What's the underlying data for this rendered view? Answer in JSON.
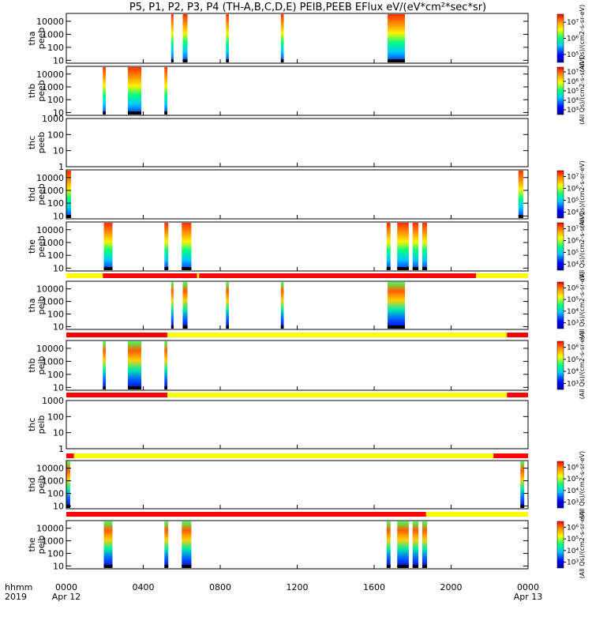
{
  "title": "P5, P1, P2, P3, P4 (TH-A,B,C,D,E) PEIB,PEEB EFlux eV/(eV*cm²*sec*sr)",
  "chart_data": {
    "type": "heatmap",
    "title": "P5, P1, P2, P3, P4 (TH-A,B,C,D,E) PEIB,PEEB EFlux eV/(eV*cm²*sec*sr)",
    "x_label_rows": [
      "hhmm",
      "2019"
    ],
    "x_ticks": [
      "0000",
      "0400",
      "0800",
      "1200",
      "1600",
      "2000",
      "0000"
    ],
    "x_tick_dates": [
      "Apr 12",
      "Apr 13"
    ],
    "x_range_hours": [
      0,
      24
    ],
    "y_scale": "log",
    "panels": [
      {
        "name": "tha peeb",
        "probe": "tha",
        "instrument": "peeb",
        "ylabel_top": "tha",
        "ylabel_bottom": "peeb",
        "yticks": [
          "10",
          "100",
          "1000",
          "10000"
        ],
        "ylim": [
          6,
          40000
        ],
        "colorbar": {
          "ticks": [
            "10⁵",
            "10⁶",
            "10⁷"
          ],
          "label": "(All Qs)/(cm2-s-sr-eV)"
        },
        "segments_hours": [
          [
            5.45,
            5.55
          ],
          [
            6.05,
            6.3
          ],
          [
            8.3,
            8.45
          ],
          [
            11.15,
            11.3
          ],
          [
            16.7,
            17.6
          ]
        ],
        "mode_bar": null
      },
      {
        "name": "thb peeb",
        "probe": "thb",
        "instrument": "peeb",
        "ylabel_top": "thb",
        "ylabel_bottom": "peeb",
        "yticks": [
          "10",
          "100",
          "1000",
          "10000"
        ],
        "ylim": [
          6,
          40000
        ],
        "colorbar": {
          "ticks": [
            "10³",
            "10⁴",
            "10⁵",
            "10⁶",
            "10⁷"
          ],
          "label": "(All Qs)/(cm2-s-sr-eV)"
        },
        "segments_hours": [
          [
            1.9,
            2.05
          ],
          [
            3.2,
            3.9
          ],
          [
            5.1,
            5.25
          ]
        ],
        "mode_bar": null
      },
      {
        "name": "thc peeb",
        "probe": "thc",
        "instrument": "peeb",
        "ylabel_top": "thc",
        "ylabel_bottom": "peeb",
        "yticks": [
          "1",
          "10",
          "100",
          "1000"
        ],
        "ylim": [
          1,
          1000
        ],
        "colorbar": null,
        "segments_hours": [],
        "mode_bar": null
      },
      {
        "name": "thd peeb",
        "probe": "thd",
        "instrument": "peeb",
        "ylabel_top": "thd",
        "ylabel_bottom": "peeb",
        "yticks": [
          "10",
          "100",
          "1000",
          "10000"
        ],
        "ylim": [
          6,
          40000
        ],
        "colorbar": {
          "ticks": [
            "10⁴",
            "10⁵",
            "10⁶",
            "10⁷"
          ],
          "label": "(All Qs)/(cm2-s-sr-eV)"
        },
        "segments_hours": [
          [
            0.0,
            0.25
          ],
          [
            23.5,
            23.75
          ]
        ],
        "mode_bar": null
      },
      {
        "name": "the peeb",
        "probe": "the",
        "instrument": "peeb",
        "ylabel_top": "the",
        "ylabel_bottom": "peeb",
        "yticks": [
          "10",
          "100",
          "1000",
          "10000"
        ],
        "ylim": [
          6,
          40000
        ],
        "colorbar": {
          "ticks": [
            "10⁴",
            "10⁵",
            "10⁶",
            "10⁷"
          ],
          "label": "(All Qs)/(cm2-s-sr-eV)"
        },
        "segments_hours": [
          [
            1.95,
            2.4
          ],
          [
            5.1,
            5.3
          ],
          [
            6.0,
            6.5
          ],
          [
            16.65,
            16.85
          ],
          [
            17.2,
            17.8
          ],
          [
            18.0,
            18.3
          ],
          [
            18.5,
            18.75
          ]
        ],
        "mode_bar": null
      },
      {
        "name": "tha peib",
        "probe": "tha",
        "instrument": "peib",
        "ylabel_top": "tha",
        "ylabel_bottom": "peib",
        "yticks": [
          "10",
          "100",
          "1000",
          "10000"
        ],
        "ylim": [
          6,
          40000
        ],
        "colorbar": {
          "ticks": [
            "10³",
            "10⁴",
            "10⁵",
            "10⁶"
          ],
          "label": "(All Qs)/(cm2-s-sr-eV)"
        },
        "segments_hours": [
          [
            5.45,
            5.55
          ],
          [
            6.05,
            6.3
          ],
          [
            8.3,
            8.45
          ],
          [
            11.15,
            11.3
          ],
          [
            16.7,
            17.6
          ]
        ],
        "mode_bar": [
          [
            "#ffff00",
            0,
            1.9
          ],
          [
            "#ff0000",
            1.9,
            6.8
          ],
          [
            "#ffff00",
            6.8,
            6.9
          ],
          [
            "#ff0000",
            6.9,
            21.3
          ],
          [
            "#ffff00",
            21.3,
            24
          ]
        ]
      },
      {
        "name": "thb peib",
        "probe": "thb",
        "instrument": "peib",
        "ylabel_top": "thb",
        "ylabel_bottom": "peib",
        "yticks": [
          "10",
          "100",
          "1000",
          "10000"
        ],
        "ylim": [
          6,
          40000
        ],
        "colorbar": {
          "ticks": [
            "10³",
            "10⁴",
            "10⁵",
            "10⁶"
          ],
          "label": "(All Qs)/(cm2-s-sr-eV)"
        },
        "segments_hours": [
          [
            1.9,
            2.05
          ],
          [
            3.2,
            3.9
          ],
          [
            5.1,
            5.25
          ]
        ],
        "mode_bar": [
          [
            "#ff0000",
            0,
            5.25
          ],
          [
            "#ffff00",
            5.25,
            22.9
          ],
          [
            "#ff0000",
            22.9,
            24
          ]
        ]
      },
      {
        "name": "thc peib",
        "probe": "thc",
        "instrument": "peib",
        "ylabel_top": "thc",
        "ylabel_bottom": "peib",
        "yticks": [
          "1",
          "10",
          "100",
          "1000"
        ],
        "ylim": [
          1,
          1000
        ],
        "colorbar": null,
        "segments_hours": [],
        "mode_bar": [
          [
            "#ff0000",
            0,
            5.25
          ],
          [
            "#ffff00",
            5.25,
            22.9
          ],
          [
            "#ff0000",
            22.9,
            24
          ]
        ]
      },
      {
        "name": "thd peib",
        "probe": "thd",
        "instrument": "peib",
        "ylabel_top": "thd",
        "ylabel_bottom": "peib",
        "yticks": [
          "10",
          "100",
          "1000",
          "10000"
        ],
        "ylim": [
          6,
          40000
        ],
        "colorbar": {
          "ticks": [
            "10³",
            "10⁴",
            "10⁵",
            "10⁶"
          ],
          "label": "(All Qs)/(cm2-s-sr-eV)"
        },
        "segments_hours": [
          [
            0.0,
            0.2
          ],
          [
            23.6,
            23.8
          ]
        ],
        "mode_bar": [
          [
            "#ff0000",
            0,
            0.4
          ],
          [
            "#ffff00",
            0.4,
            22.2
          ],
          [
            "#ff0000",
            22.2,
            24
          ]
        ]
      },
      {
        "name": "the peib",
        "probe": "the",
        "instrument": "peib",
        "ylabel_top": "the",
        "ylabel_bottom": "peib",
        "yticks": [
          "10",
          "100",
          "1000",
          "10000"
        ],
        "ylim": [
          6,
          40000
        ],
        "colorbar": {
          "ticks": [
            "10³",
            "10⁴",
            "10⁵",
            "10⁶"
          ],
          "label": "(All Qs)/(cm2-s-sr-eV)"
        },
        "segments_hours": [
          [
            1.95,
            2.4
          ],
          [
            5.1,
            5.3
          ],
          [
            6.0,
            6.5
          ],
          [
            16.65,
            16.85
          ],
          [
            17.2,
            17.8
          ],
          [
            18.0,
            18.3
          ],
          [
            18.5,
            18.75
          ]
        ],
        "mode_bar": [
          [
            "#ff0000",
            0,
            18.7
          ],
          [
            "#ffff00",
            18.7,
            24
          ]
        ]
      }
    ],
    "colors": {
      "high": "#ff0000",
      "mid_high": "#ffff00",
      "mid": "#00ff80",
      "mid_low": "#00c0ff",
      "low": "#0000ff",
      "lowest": "#000000"
    }
  }
}
